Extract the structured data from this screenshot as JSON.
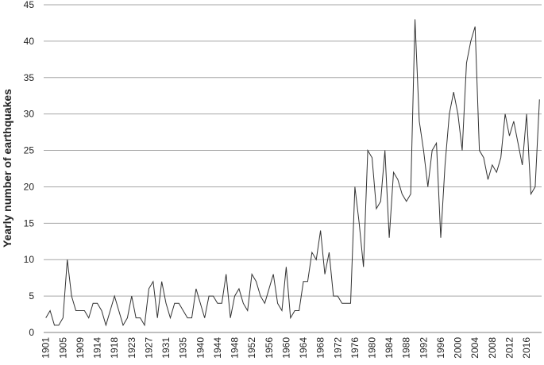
{
  "chart_data": {
    "type": "line",
    "ylabel": "Yearly number of earthquakes",
    "categories": [
      "1901",
      null,
      null,
      null,
      "1905",
      null,
      null,
      null,
      "1909",
      null,
      null,
      null,
      "1914",
      null,
      null,
      null,
      "1918",
      null,
      null,
      null,
      "1923",
      null,
      null,
      null,
      "1927",
      null,
      null,
      null,
      "1931",
      null,
      null,
      null,
      "1935",
      null,
      null,
      null,
      "1940",
      null,
      null,
      null,
      "1944",
      null,
      null,
      null,
      "1948",
      null,
      null,
      null,
      "1952",
      null,
      null,
      null,
      "1956",
      null,
      null,
      null,
      "1960",
      null,
      null,
      null,
      "1964",
      null,
      null,
      null,
      "1968",
      null,
      null,
      null,
      "1972",
      null,
      null,
      null,
      "1976",
      null,
      null,
      null,
      "1980",
      null,
      null,
      null,
      "1984",
      null,
      null,
      null,
      "1988",
      null,
      null,
      null,
      "1992",
      null,
      null,
      null,
      "1996",
      null,
      null,
      null,
      "2000",
      null,
      null,
      null,
      "2004",
      null,
      null,
      null,
      "2008",
      null,
      null,
      null,
      "2012",
      null,
      null,
      null,
      "2016",
      null,
      null,
      null
    ],
    "values": [
      2,
      3,
      1,
      1,
      2,
      10,
      5,
      3,
      3,
      3,
      2,
      4,
      4,
      3,
      1,
      3,
      5,
      3,
      1,
      2,
      5,
      2,
      2,
      1,
      6,
      7,
      2,
      7,
      4,
      2,
      4,
      4,
      3,
      2,
      2,
      6,
      4,
      2,
      5,
      5,
      4,
      4,
      8,
      2,
      5,
      6,
      4,
      3,
      8,
      7,
      5,
      4,
      6,
      8,
      4,
      3,
      9,
      2,
      3,
      3,
      7,
      7,
      11,
      10,
      14,
      8,
      11,
      5,
      5,
      4,
      4,
      4,
      20,
      15,
      9,
      25,
      24,
      17,
      18,
      25,
      13,
      22,
      21,
      19,
      18,
      19,
      43,
      29,
      25,
      20,
      25,
      26,
      13,
      23,
      30,
      33,
      30,
      25,
      37,
      40,
      42,
      25,
      24,
      21,
      23,
      22,
      24,
      30,
      27,
      29,
      26,
      23,
      30,
      19,
      20,
      32
    ],
    "color": "#333333",
    "ylim": [
      0,
      45
    ],
    "yticks": [
      0,
      5,
      10,
      15,
      20,
      25,
      30,
      35,
      40,
      45
    ],
    "grid": true
  }
}
